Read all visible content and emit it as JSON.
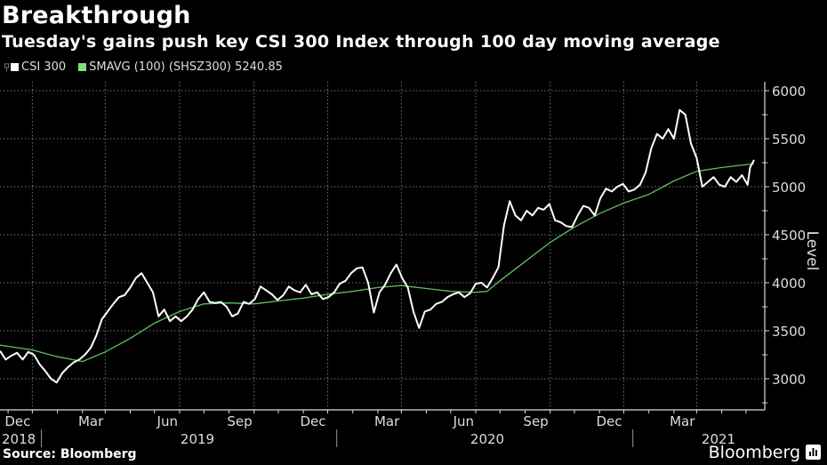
{
  "header": {
    "title": "Breakthrough",
    "subtitle": "Tuesday's gains push key CSI 300 Index through 100 day moving average"
  },
  "legend": {
    "items": [
      {
        "label": "CSI 300",
        "color": "#ffffff"
      },
      {
        "label": "SMAVG (100) (SHSZ300) 5240.85",
        "color": "#7ee07e"
      }
    ]
  },
  "footer": {
    "source": "Source: Bloomberg",
    "brand": "Bloomberg"
  },
  "chart_data": {
    "type": "line",
    "title": "Breakthrough",
    "subtitle": "Tuesday's gains push key CSI 300 Index through 100 day moving average",
    "xlabel": "",
    "ylabel": "Level",
    "ylim": [
      2700,
      6100
    ],
    "yticks": [
      3000,
      3500,
      4000,
      4500,
      5000,
      5500,
      6000
    ],
    "y_axis_position": "right",
    "grid": true,
    "legend_position": "top-left",
    "x_range": [
      "2018-10-22",
      "2021-05-11"
    ],
    "x_month_ticks": [
      {
        "label": "Dec",
        "date": "2018-12-01"
      },
      {
        "label": "Mar",
        "date": "2019-03-01"
      },
      {
        "label": "Jun",
        "date": "2019-06-01"
      },
      {
        "label": "Sep",
        "date": "2019-09-01"
      },
      {
        "label": "Dec",
        "date": "2019-12-01"
      },
      {
        "label": "Mar",
        "date": "2020-03-01"
      },
      {
        "label": "Jun",
        "date": "2020-06-01"
      },
      {
        "label": "Sep",
        "date": "2020-09-01"
      },
      {
        "label": "Dec",
        "date": "2020-12-01"
      },
      {
        "label": "Mar",
        "date": "2021-03-01"
      }
    ],
    "x_year_labels": [
      {
        "label": "2018",
        "date": "2018-11-10"
      },
      {
        "label": "2019",
        "date": "2019-07-01"
      },
      {
        "label": "2020",
        "date": "2020-07-01"
      },
      {
        "label": "2021",
        "date": "2021-03-20"
      }
    ],
    "x_year_separators": [
      "2019-01-01",
      "2020-01-01",
      "2021-01-01"
    ],
    "series": [
      {
        "name": "CSI 300",
        "color": "#ffffff",
        "points": [
          [
            "2018-10-22",
            3290
          ],
          [
            "2018-10-29",
            3200
          ],
          [
            "2018-11-05",
            3240
          ],
          [
            "2018-11-12",
            3270
          ],
          [
            "2018-11-19",
            3200
          ],
          [
            "2018-11-26",
            3280
          ],
          [
            "2018-12-03",
            3250
          ],
          [
            "2018-12-10",
            3150
          ],
          [
            "2018-12-17",
            3080
          ],
          [
            "2018-12-24",
            3000
          ],
          [
            "2018-12-31",
            2960
          ],
          [
            "2019-01-07",
            3060
          ],
          [
            "2019-01-14",
            3120
          ],
          [
            "2019-01-21",
            3170
          ],
          [
            "2019-01-28",
            3200
          ],
          [
            "2019-02-04",
            3250
          ],
          [
            "2019-02-11",
            3320
          ],
          [
            "2019-02-18",
            3450
          ],
          [
            "2019-02-25",
            3620
          ],
          [
            "2019-03-04",
            3700
          ],
          [
            "2019-03-11",
            3780
          ],
          [
            "2019-03-18",
            3850
          ],
          [
            "2019-03-25",
            3870
          ],
          [
            "2019-04-01",
            3950
          ],
          [
            "2019-04-08",
            4050
          ],
          [
            "2019-04-15",
            4100
          ],
          [
            "2019-04-22",
            4000
          ],
          [
            "2019-04-29",
            3900
          ],
          [
            "2019-05-06",
            3650
          ],
          [
            "2019-05-13",
            3720
          ],
          [
            "2019-05-20",
            3600
          ],
          [
            "2019-05-27",
            3650
          ],
          [
            "2019-06-03",
            3600
          ],
          [
            "2019-06-10",
            3650
          ],
          [
            "2019-06-17",
            3720
          ],
          [
            "2019-06-24",
            3830
          ],
          [
            "2019-07-01",
            3900
          ],
          [
            "2019-07-08",
            3800
          ],
          [
            "2019-07-15",
            3790
          ],
          [
            "2019-07-22",
            3800
          ],
          [
            "2019-07-29",
            3750
          ],
          [
            "2019-08-05",
            3650
          ],
          [
            "2019-08-12",
            3680
          ],
          [
            "2019-08-19",
            3800
          ],
          [
            "2019-08-26",
            3780
          ],
          [
            "2019-09-02",
            3830
          ],
          [
            "2019-09-09",
            3960
          ],
          [
            "2019-09-16",
            3920
          ],
          [
            "2019-09-23",
            3880
          ],
          [
            "2019-09-30",
            3820
          ],
          [
            "2019-10-07",
            3870
          ],
          [
            "2019-10-14",
            3960
          ],
          [
            "2019-10-21",
            3920
          ],
          [
            "2019-10-28",
            3900
          ],
          [
            "2019-11-04",
            3980
          ],
          [
            "2019-11-11",
            3880
          ],
          [
            "2019-11-18",
            3900
          ],
          [
            "2019-11-25",
            3830
          ],
          [
            "2019-12-02",
            3850
          ],
          [
            "2019-12-09",
            3900
          ],
          [
            "2019-12-16",
            3990
          ],
          [
            "2019-12-23",
            4020
          ],
          [
            "2019-12-30",
            4100
          ],
          [
            "2020-01-06",
            4150
          ],
          [
            "2020-01-13",
            4160
          ],
          [
            "2020-01-20",
            4000
          ],
          [
            "2020-01-27",
            3690
          ],
          [
            "2020-02-03",
            3900
          ],
          [
            "2020-02-10",
            3980
          ],
          [
            "2020-02-17",
            4100
          ],
          [
            "2020-02-24",
            4190
          ],
          [
            "2020-03-02",
            4050
          ],
          [
            "2020-03-09",
            3950
          ],
          [
            "2020-03-16",
            3700
          ],
          [
            "2020-03-23",
            3530
          ],
          [
            "2020-03-30",
            3700
          ],
          [
            "2020-04-06",
            3720
          ],
          [
            "2020-04-13",
            3780
          ],
          [
            "2020-04-20",
            3800
          ],
          [
            "2020-04-27",
            3850
          ],
          [
            "2020-05-04",
            3880
          ],
          [
            "2020-05-11",
            3900
          ],
          [
            "2020-05-18",
            3850
          ],
          [
            "2020-05-25",
            3890
          ],
          [
            "2020-06-01",
            3990
          ],
          [
            "2020-06-08",
            4000
          ],
          [
            "2020-06-15",
            3950
          ],
          [
            "2020-06-22",
            4050
          ],
          [
            "2020-06-29",
            4160
          ],
          [
            "2020-07-06",
            4600
          ],
          [
            "2020-07-13",
            4850
          ],
          [
            "2020-07-20",
            4700
          ],
          [
            "2020-07-27",
            4650
          ],
          [
            "2020-08-03",
            4750
          ],
          [
            "2020-08-10",
            4700
          ],
          [
            "2020-08-17",
            4780
          ],
          [
            "2020-08-24",
            4760
          ],
          [
            "2020-08-31",
            4820
          ],
          [
            "2020-09-07",
            4650
          ],
          [
            "2020-09-14",
            4630
          ],
          [
            "2020-09-21",
            4590
          ],
          [
            "2020-09-28",
            4580
          ],
          [
            "2020-10-05",
            4700
          ],
          [
            "2020-10-12",
            4800
          ],
          [
            "2020-10-19",
            4780
          ],
          [
            "2020-10-26",
            4700
          ],
          [
            "2020-11-02",
            4880
          ],
          [
            "2020-11-09",
            4980
          ],
          [
            "2020-11-16",
            4950
          ],
          [
            "2020-11-23",
            5000
          ],
          [
            "2020-11-30",
            5030
          ],
          [
            "2020-12-07",
            4950
          ],
          [
            "2020-12-14",
            4970
          ],
          [
            "2020-12-21",
            5020
          ],
          [
            "2020-12-28",
            5150
          ],
          [
            "2021-01-04",
            5400
          ],
          [
            "2021-01-11",
            5550
          ],
          [
            "2021-01-18",
            5500
          ],
          [
            "2021-01-25",
            5600
          ],
          [
            "2021-02-01",
            5500
          ],
          [
            "2021-02-08",
            5800
          ],
          [
            "2021-02-15",
            5750
          ],
          [
            "2021-02-22",
            5450
          ],
          [
            "2021-03-01",
            5300
          ],
          [
            "2021-03-08",
            5000
          ],
          [
            "2021-03-15",
            5050
          ],
          [
            "2021-03-22",
            5100
          ],
          [
            "2021-03-29",
            5020
          ],
          [
            "2021-04-05",
            5000
          ],
          [
            "2021-04-12",
            5100
          ],
          [
            "2021-04-19",
            5050
          ],
          [
            "2021-04-26",
            5120
          ],
          [
            "2021-05-03",
            5020
          ],
          [
            "2021-05-06",
            5200
          ],
          [
            "2021-05-11",
            5280
          ]
        ]
      },
      {
        "name": "SMAVG (100) (SHSZ300)",
        "color": "#5fbf5f",
        "last_value": 5240.85,
        "points": [
          [
            "2018-10-22",
            3350
          ],
          [
            "2018-12-01",
            3300
          ],
          [
            "2019-01-01",
            3230
          ],
          [
            "2019-02-01",
            3180
          ],
          [
            "2019-03-01",
            3280
          ],
          [
            "2019-04-01",
            3420
          ],
          [
            "2019-05-01",
            3580
          ],
          [
            "2019-06-01",
            3700
          ],
          [
            "2019-07-01",
            3780
          ],
          [
            "2019-08-01",
            3790
          ],
          [
            "2019-09-01",
            3780
          ],
          [
            "2019-10-01",
            3810
          ],
          [
            "2019-11-01",
            3840
          ],
          [
            "2019-12-01",
            3880
          ],
          [
            "2020-01-01",
            3910
          ],
          [
            "2020-02-01",
            3950
          ],
          [
            "2020-03-01",
            3970
          ],
          [
            "2020-04-01",
            3940
          ],
          [
            "2020-05-01",
            3910
          ],
          [
            "2020-06-01",
            3900
          ],
          [
            "2020-06-15",
            3910
          ],
          [
            "2020-07-01",
            4020
          ],
          [
            "2020-08-01",
            4220
          ],
          [
            "2020-09-01",
            4420
          ],
          [
            "2020-10-01",
            4580
          ],
          [
            "2020-11-01",
            4720
          ],
          [
            "2020-12-01",
            4830
          ],
          [
            "2021-01-01",
            4920
          ],
          [
            "2021-02-01",
            5060
          ],
          [
            "2021-03-01",
            5160
          ],
          [
            "2021-04-01",
            5200
          ],
          [
            "2021-05-11",
            5240
          ]
        ]
      }
    ]
  }
}
